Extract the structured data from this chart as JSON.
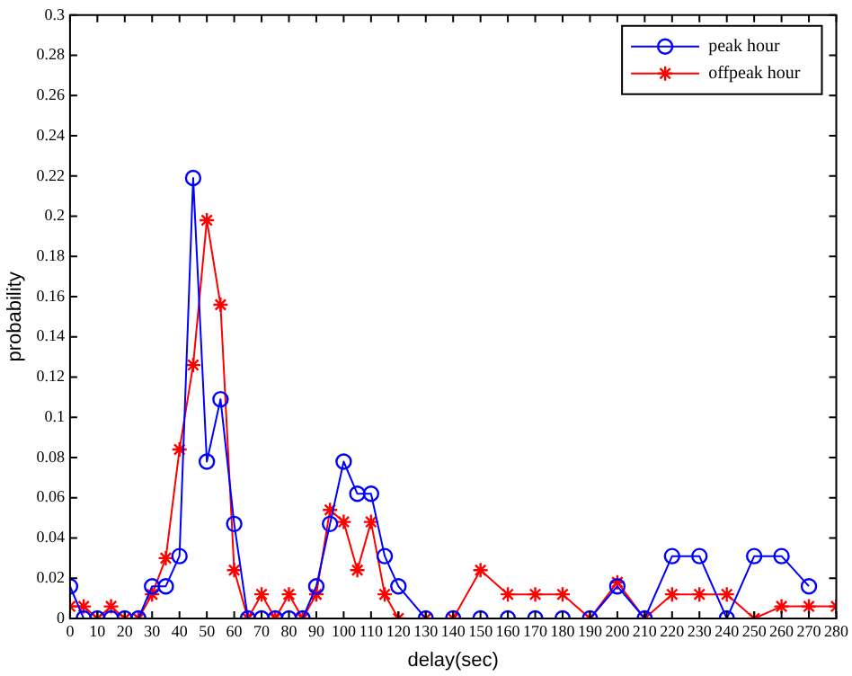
{
  "chart_data": {
    "type": "line",
    "xlabel": "delay(sec)",
    "ylabel": "probability",
    "xlim": [
      0,
      280
    ],
    "xticks": [
      0,
      10,
      20,
      30,
      40,
      50,
      60,
      70,
      80,
      90,
      100,
      110,
      120,
      130,
      140,
      150,
      160,
      170,
      180,
      190,
      200,
      210,
      220,
      230,
      240,
      250,
      260,
      270,
      280
    ],
    "ylim": [
      0,
      0.3
    ],
    "yticks": [
      0,
      0.02,
      0.04,
      0.06,
      0.08,
      0.1,
      0.12,
      0.14,
      0.16,
      0.18,
      0.2,
      0.22,
      0.24,
      0.26,
      0.28,
      0.3
    ],
    "grid": false,
    "legend": "top right",
    "series": [
      {
        "name": "peak hour",
        "color": "#0000ff",
        "marker": "circle",
        "x": [
          0,
          5,
          10,
          15,
          20,
          25,
          30,
          35,
          40,
          45,
          50,
          55,
          60,
          65,
          70,
          75,
          80,
          85,
          90,
          95,
          100,
          105,
          110,
          115,
          120,
          130,
          140,
          150,
          160,
          170,
          180,
          190,
          200,
          210,
          220,
          230,
          240,
          250,
          260,
          270
        ],
        "values": [
          0.016,
          0,
          0,
          0,
          0,
          0,
          0.016,
          0.016,
          0.031,
          0.219,
          0.078,
          0.109,
          0.047,
          0,
          0,
          0,
          0,
          0,
          0.016,
          0.047,
          0.078,
          0.062,
          0.062,
          0.031,
          0.016,
          0,
          0,
          0,
          0,
          0,
          0,
          0,
          0.016,
          0,
          0.031,
          0.031,
          0,
          0.031,
          0.031,
          0.016
        ]
      },
      {
        "name": "offpeak hour",
        "color": "#ff0000",
        "marker": "cross",
        "x": [
          0,
          5,
          10,
          15,
          20,
          25,
          30,
          35,
          40,
          45,
          50,
          55,
          60,
          65,
          70,
          75,
          80,
          85,
          90,
          95,
          100,
          105,
          110,
          115,
          120,
          130,
          140,
          150,
          160,
          170,
          180,
          190,
          200,
          210,
          220,
          230,
          240,
          250,
          260,
          270,
          280
        ],
        "values": [
          0.006,
          0.006,
          0,
          0.006,
          0,
          0,
          0.012,
          0.03,
          0.084,
          0.126,
          0.198,
          0.156,
          0.024,
          0,
          0.012,
          0,
          0.012,
          0,
          0.012,
          0.054,
          0.048,
          0.024,
          0.048,
          0.012,
          0,
          0,
          0,
          0.024,
          0.012,
          0.012,
          0.012,
          0,
          0.018,
          0,
          0.012,
          0.012,
          0.012,
          0,
          0.006,
          0.006,
          0.006
        ]
      }
    ]
  }
}
